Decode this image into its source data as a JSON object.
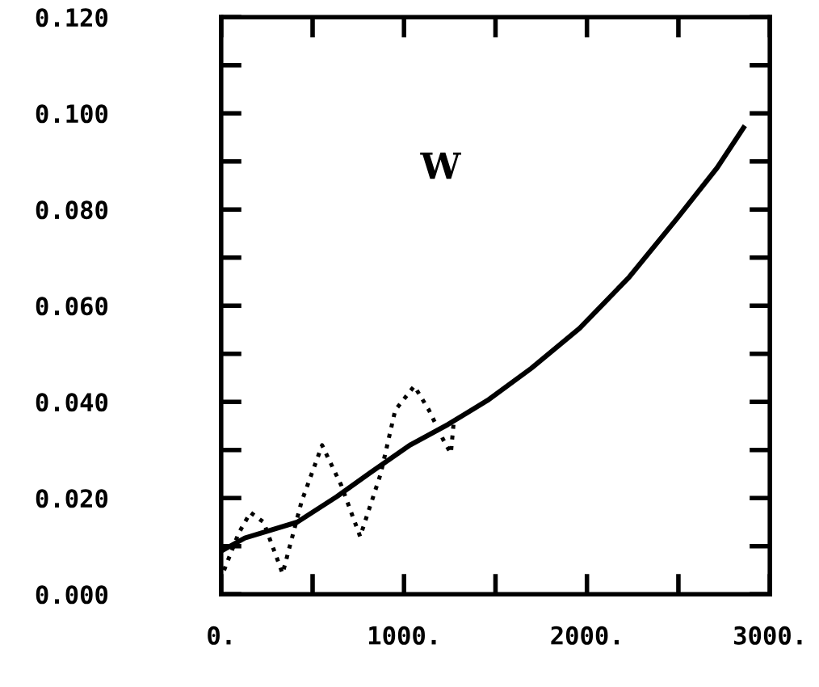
{
  "chart_data": {
    "type": "line",
    "annotations": [
      "W"
    ],
    "xlim": [
      0,
      3000
    ],
    "xticks": [
      {
        "value": 0,
        "label": "0."
      },
      {
        "value": 500,
        "label": null
      },
      {
        "value": 1000,
        "label": "1000."
      },
      {
        "value": 1500,
        "label": null
      },
      {
        "value": 2000,
        "label": "2000."
      },
      {
        "value": 2500,
        "label": null
      },
      {
        "value": 3000,
        "label": "3000."
      }
    ],
    "ylim": [
      0,
      0.12
    ],
    "yticks": [
      {
        "value": 0,
        "label": "0.000"
      },
      {
        "value": 0.01,
        "label": null
      },
      {
        "value": 0.02,
        "label": "0.020"
      },
      {
        "value": 0.03,
        "label": null
      },
      {
        "value": 0.04,
        "label": "0.040"
      },
      {
        "value": 0.05,
        "label": null
      },
      {
        "value": 0.06,
        "label": "0.060"
      },
      {
        "value": 0.07,
        "label": null
      },
      {
        "value": 0.08,
        "label": "0.080"
      },
      {
        "value": 0.09,
        "label": null
      },
      {
        "value": 0.1,
        "label": "0.100"
      },
      {
        "value": 0.11,
        "label": null
      },
      {
        "value": 0.12,
        "label": "0.120"
      }
    ],
    "grid": false,
    "legend": false,
    "series": [
      {
        "color": "#000000",
        "line_style": "solid",
        "x": [
          16,
          130,
          416,
          632,
          816,
          1032,
          1240,
          1456,
          1696,
          1960,
          2232,
          2496,
          2712,
          2856
        ],
        "values": [
          0.0093,
          0.0117,
          0.015,
          0.0203,
          0.0253,
          0.031,
          0.0353,
          0.0403,
          0.047,
          0.0553,
          0.066,
          0.0783,
          0.0887,
          0.097
        ]
      },
      {
        "color": "#000000",
        "line_style": "dotted",
        "x": [
          16,
          96,
          160,
          232,
          336,
          440,
          552,
          656,
          760,
          872,
          952,
          1056,
          1136,
          1216,
          1256,
          1272
        ],
        "values": [
          0.005,
          0.0127,
          0.017,
          0.015,
          0.0043,
          0.0193,
          0.031,
          0.0227,
          0.012,
          0.025,
          0.0383,
          0.0433,
          0.0383,
          0.032,
          0.0293,
          0.036
        ]
      }
    ]
  }
}
